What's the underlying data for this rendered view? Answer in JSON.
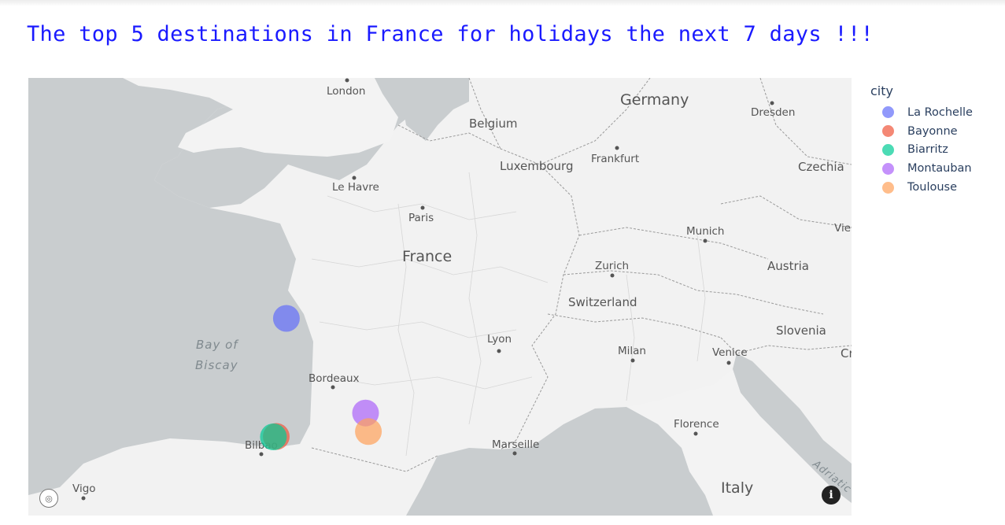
{
  "title": "The top 5 destinations in France for holidays the next 7 days !!!",
  "legend": {
    "title": "city",
    "items": [
      {
        "label": "La Rochelle",
        "color": "#636efa"
      },
      {
        "label": "Bayonne",
        "color": "#ef553b"
      },
      {
        "label": "Biarritz",
        "color": "#00cc96"
      },
      {
        "label": "Montauban",
        "color": "#ab63fa"
      },
      {
        "label": "Toulouse",
        "color": "#ffa15a"
      }
    ]
  },
  "map": {
    "countries": [
      "Germany",
      "Belgium",
      "Luxembourg",
      "Czechia",
      "France",
      "Austria",
      "Switzerland",
      "Slovenia",
      "Italy",
      "Cr"
    ],
    "cities": [
      "London",
      "Dresden",
      "Frankfurt",
      "Le Havre",
      "Paris",
      "Munich",
      "Vie",
      "Zurich",
      "Lyon",
      "Milan",
      "Venice",
      "Bordeaux",
      "Florence",
      "Marseille",
      "Bilbao",
      "Vigo"
    ],
    "water": [
      "Bay of",
      "Biscay",
      "Adriatic"
    ],
    "markers": [
      {
        "city": "La Rochelle",
        "lat": 46.16,
        "lon": -1.15
      },
      {
        "city": "Bayonne",
        "lat": 43.49,
        "lon": -1.47
      },
      {
        "city": "Biarritz",
        "lat": 43.48,
        "lon": -1.56
      },
      {
        "city": "Montauban",
        "lat": 44.02,
        "lon": 1.35
      },
      {
        "city": "Toulouse",
        "lat": 43.6,
        "lon": 1.44
      }
    ]
  },
  "controls": {
    "logo_icon": "compass-logo-icon",
    "info_icon": "info-icon",
    "info_glyph": "i",
    "logo_glyph": "◎"
  }
}
